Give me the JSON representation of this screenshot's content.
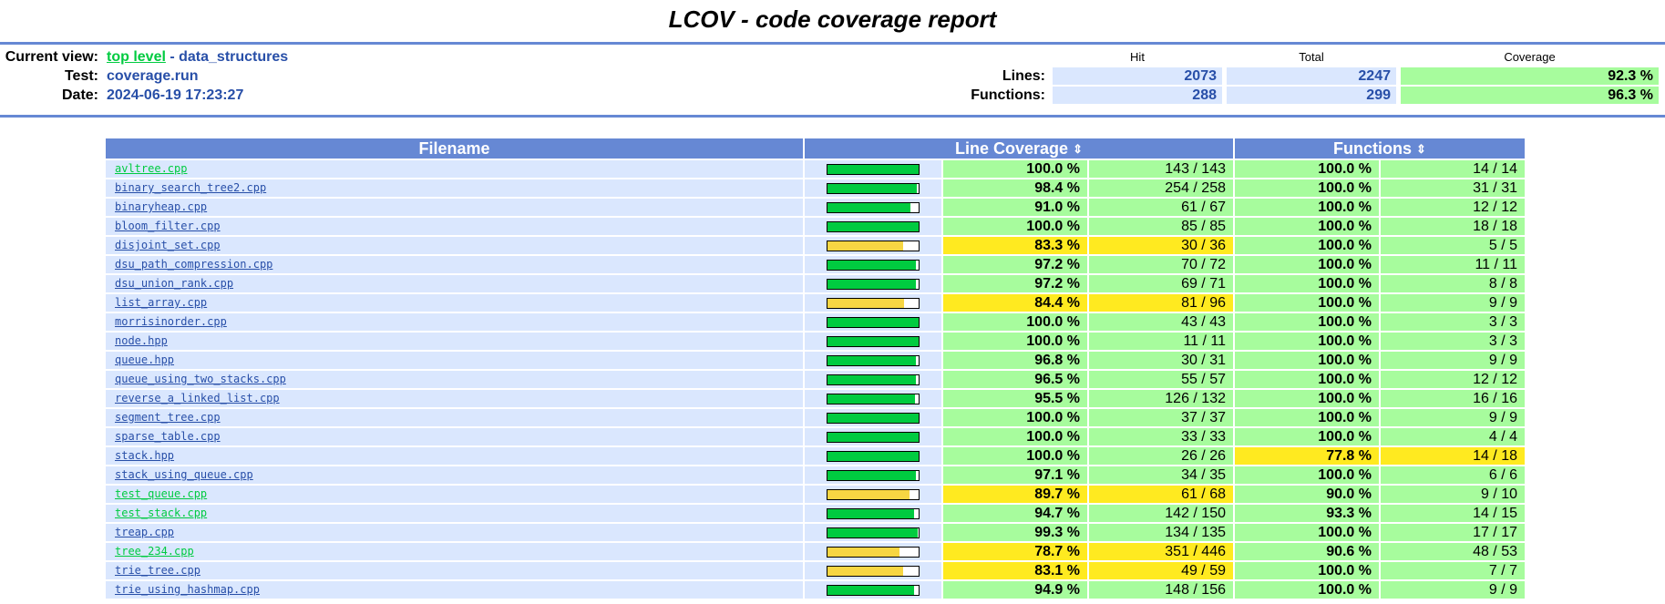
{
  "title": "LCOV - code coverage report",
  "header": {
    "current_view_label": "Current view:",
    "top_level_link": "top level",
    "separator": " - ",
    "current_dir": "data_structures",
    "test_label": "Test:",
    "test_value": "coverage.run",
    "date_label": "Date:",
    "date_value": "2024-06-19 17:23:27"
  },
  "summary": {
    "col_hit": "Hit",
    "col_total": "Total",
    "col_coverage": "Coverage",
    "lines_label": "Lines:",
    "lines_hit": "2073",
    "lines_total": "2247",
    "lines_cov": "92.3 %",
    "functions_label": "Functions:",
    "functions_hit": "288",
    "functions_total": "299",
    "functions_cov": "96.3 %"
  },
  "table": {
    "col_filename": "Filename",
    "col_line_coverage": "Line Coverage",
    "col_functions": "Functions",
    "sort_icon": "sort-updown-icon",
    "rows": [
      {
        "file": "avltree.cpp",
        "link_color": "hi",
        "line_pct": "100.0 %",
        "line_cnt": "143 / 143",
        "line_frac": 1.0,
        "line_level": "hi",
        "fn_pct": "100.0 %",
        "fn_cnt": "14 / 14",
        "fn_level": "hi"
      },
      {
        "file": "binary_search_tree2.cpp",
        "link_color": "lo",
        "line_pct": "98.4 %",
        "line_cnt": "254 / 258",
        "line_frac": 0.984,
        "line_level": "hi",
        "fn_pct": "100.0 %",
        "fn_cnt": "31 / 31",
        "fn_level": "hi"
      },
      {
        "file": "binaryheap.cpp",
        "link_color": "lo",
        "line_pct": "91.0 %",
        "line_cnt": "61 / 67",
        "line_frac": 0.91,
        "line_level": "hi",
        "fn_pct": "100.0 %",
        "fn_cnt": "12 / 12",
        "fn_level": "hi"
      },
      {
        "file": "bloom_filter.cpp",
        "link_color": "lo",
        "line_pct": "100.0 %",
        "line_cnt": "85 / 85",
        "line_frac": 1.0,
        "line_level": "hi",
        "fn_pct": "100.0 %",
        "fn_cnt": "18 / 18",
        "fn_level": "hi"
      },
      {
        "file": "disjoint_set.cpp",
        "link_color": "lo",
        "line_pct": "83.3 %",
        "line_cnt": "30 / 36",
        "line_frac": 0.833,
        "line_level": "med",
        "fn_pct": "100.0 %",
        "fn_cnt": "5 / 5",
        "fn_level": "hi"
      },
      {
        "file": "dsu_path_compression.cpp",
        "link_color": "lo",
        "line_pct": "97.2 %",
        "line_cnt": "70 / 72",
        "line_frac": 0.972,
        "line_level": "hi",
        "fn_pct": "100.0 %",
        "fn_cnt": "11 / 11",
        "fn_level": "hi"
      },
      {
        "file": "dsu_union_rank.cpp",
        "link_color": "lo",
        "line_pct": "97.2 %",
        "line_cnt": "69 / 71",
        "line_frac": 0.972,
        "line_level": "hi",
        "fn_pct": "100.0 %",
        "fn_cnt": "8 / 8",
        "fn_level": "hi"
      },
      {
        "file": "list_array.cpp",
        "link_color": "lo",
        "line_pct": "84.4 %",
        "line_cnt": "81 / 96",
        "line_frac": 0.844,
        "line_level": "med",
        "fn_pct": "100.0 %",
        "fn_cnt": "9 / 9",
        "fn_level": "hi"
      },
      {
        "file": "morrisinorder.cpp",
        "link_color": "lo",
        "line_pct": "100.0 %",
        "line_cnt": "43 / 43",
        "line_frac": 1.0,
        "line_level": "hi",
        "fn_pct": "100.0 %",
        "fn_cnt": "3 / 3",
        "fn_level": "hi"
      },
      {
        "file": "node.hpp",
        "link_color": "lo",
        "line_pct": "100.0 %",
        "line_cnt": "11 / 11",
        "line_frac": 1.0,
        "line_level": "hi",
        "fn_pct": "100.0 %",
        "fn_cnt": "3 / 3",
        "fn_level": "hi"
      },
      {
        "file": "queue.hpp",
        "link_color": "lo",
        "line_pct": "96.8 %",
        "line_cnt": "30 / 31",
        "line_frac": 0.968,
        "line_level": "hi",
        "fn_pct": "100.0 %",
        "fn_cnt": "9 / 9",
        "fn_level": "hi"
      },
      {
        "file": "queue_using_two_stacks.cpp",
        "link_color": "lo",
        "line_pct": "96.5 %",
        "line_cnt": "55 / 57",
        "line_frac": 0.965,
        "line_level": "hi",
        "fn_pct": "100.0 %",
        "fn_cnt": "12 / 12",
        "fn_level": "hi"
      },
      {
        "file": "reverse_a_linked_list.cpp",
        "link_color": "lo",
        "line_pct": "95.5 %",
        "line_cnt": "126 / 132",
        "line_frac": 0.955,
        "line_level": "hi",
        "fn_pct": "100.0 %",
        "fn_cnt": "16 / 16",
        "fn_level": "hi"
      },
      {
        "file": "segment_tree.cpp",
        "link_color": "lo",
        "line_pct": "100.0 %",
        "line_cnt": "37 / 37",
        "line_frac": 1.0,
        "line_level": "hi",
        "fn_pct": "100.0 %",
        "fn_cnt": "9 / 9",
        "fn_level": "hi"
      },
      {
        "file": "sparse_table.cpp",
        "link_color": "lo",
        "line_pct": "100.0 %",
        "line_cnt": "33 / 33",
        "line_frac": 1.0,
        "line_level": "hi",
        "fn_pct": "100.0 %",
        "fn_cnt": "4 / 4",
        "fn_level": "hi"
      },
      {
        "file": "stack.hpp",
        "link_color": "lo",
        "line_pct": "100.0 %",
        "line_cnt": "26 / 26",
        "line_frac": 1.0,
        "line_level": "hi",
        "fn_pct": "77.8 %",
        "fn_cnt": "14 / 18",
        "fn_level": "med"
      },
      {
        "file": "stack_using_queue.cpp",
        "link_color": "lo",
        "line_pct": "97.1 %",
        "line_cnt": "34 / 35",
        "line_frac": 0.971,
        "line_level": "hi",
        "fn_pct": "100.0 %",
        "fn_cnt": "6 / 6",
        "fn_level": "hi"
      },
      {
        "file": "test_queue.cpp",
        "link_color": "hi",
        "line_pct": "89.7 %",
        "line_cnt": "61 / 68",
        "line_frac": 0.897,
        "line_level": "med",
        "fn_pct": "90.0 %",
        "fn_cnt": "9 / 10",
        "fn_level": "hi"
      },
      {
        "file": "test_stack.cpp",
        "link_color": "hi",
        "line_pct": "94.7 %",
        "line_cnt": "142 / 150",
        "line_frac": 0.947,
        "line_level": "hi",
        "fn_pct": "93.3 %",
        "fn_cnt": "14 / 15",
        "fn_level": "hi"
      },
      {
        "file": "treap.cpp",
        "link_color": "lo",
        "line_pct": "99.3 %",
        "line_cnt": "134 / 135",
        "line_frac": 0.993,
        "line_level": "hi",
        "fn_pct": "100.0 %",
        "fn_cnt": "17 / 17",
        "fn_level": "hi"
      },
      {
        "file": "tree_234.cpp",
        "link_color": "hi",
        "line_pct": "78.7 %",
        "line_cnt": "351 / 446",
        "line_frac": 0.787,
        "line_level": "med",
        "fn_pct": "90.6 %",
        "fn_cnt": "48 / 53",
        "fn_level": "hi"
      },
      {
        "file": "trie_tree.cpp",
        "link_color": "lo",
        "line_pct": "83.1 %",
        "line_cnt": "49 / 59",
        "line_frac": 0.831,
        "line_level": "med",
        "fn_pct": "100.0 %",
        "fn_cnt": "7 / 7",
        "fn_level": "hi"
      },
      {
        "file": "trie_using_hashmap.cpp",
        "link_color": "lo",
        "line_pct": "94.9 %",
        "line_cnt": "148 / 156",
        "line_frac": 0.949,
        "line_level": "hi",
        "fn_pct": "100.0 %",
        "fn_cnt": "9 / 9",
        "fn_level": "hi"
      }
    ]
  },
  "colors": {
    "hi": "#a7fc9d",
    "med": "#ffea20",
    "bar_hi": "#00cb40",
    "bar_med": "#f7d643",
    "header": "#6688d4",
    "row": "#dae7fe"
  }
}
